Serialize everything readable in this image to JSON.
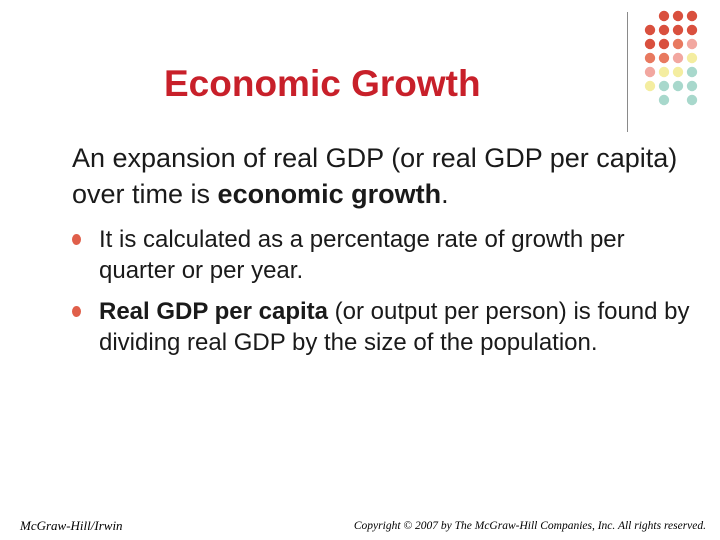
{
  "slide": {
    "title": "Economic Growth",
    "intro": {
      "text_before": "An expansion of real GDP (or real GDP per capita) over time is ",
      "emphasis": "economic growth",
      "text_after": "."
    },
    "bullets": [
      {
        "bold": "",
        "text": "It is calculated as a percentage rate of growth per quarter or per year."
      },
      {
        "bold": "Real GDP per capita",
        "text": " (or output per person) is found by dividing real GDP by the size of the population."
      }
    ]
  },
  "footer": {
    "left": "McGraw-Hill/Irwin",
    "right": "Copyright © 2007 by The McGraw-Hill Companies, Inc. All rights reserved."
  },
  "decoration": {
    "dot_colors": {
      "red": "#d9503e",
      "orange": "#e8795f",
      "pink": "#f2a7a0",
      "yellow": "#f4eda0",
      "teal": "#a8d8cc"
    },
    "grid_rows": [
      [
        "none",
        "red",
        "red",
        "red"
      ],
      [
        "red",
        "red",
        "red",
        "red"
      ],
      [
        "red",
        "red",
        "orange",
        "pink"
      ],
      [
        "orange",
        "orange",
        "pink",
        "yellow"
      ],
      [
        "pink",
        "yellow",
        "yellow",
        "teal"
      ],
      [
        "yellow",
        "teal",
        "teal",
        "teal"
      ],
      [
        "none",
        "teal",
        "none",
        "teal"
      ]
    ],
    "bullet_color": "#e05f4a"
  }
}
